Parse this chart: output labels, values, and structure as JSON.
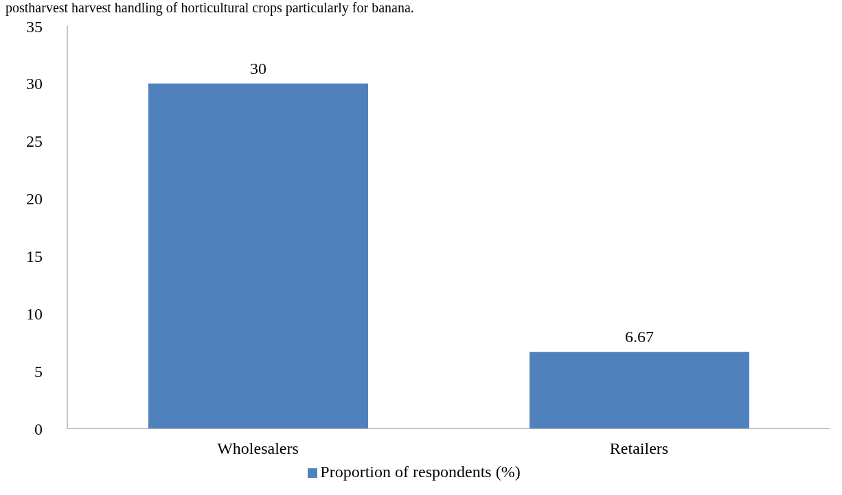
{
  "chart_data": {
    "type": "bar",
    "annotations": [
      "postharvest harvest handling of horticultural crops particularly for banana."
    ],
    "categories": [
      "Wholesalers",
      "Retailers"
    ],
    "series": [
      {
        "name": "Proportion of respondents (%)",
        "color": "#4f81bd",
        "values": [
          30,
          6.67
        ]
      }
    ],
    "ylim": [
      0,
      35
    ],
    "yticks": [
      0,
      5,
      10,
      15,
      20,
      25,
      30,
      35
    ],
    "grid": false,
    "legend": "bottom",
    "data_labels": true
  }
}
